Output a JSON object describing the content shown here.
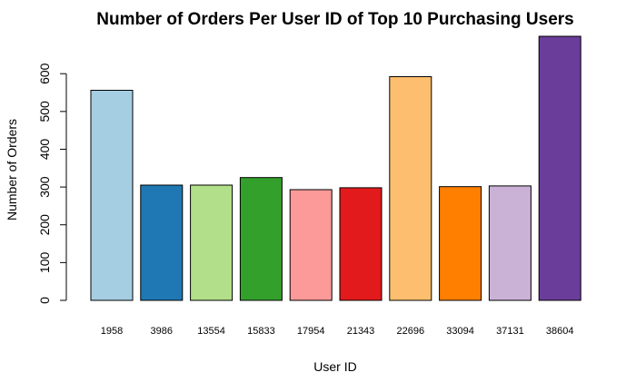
{
  "chart_data": {
    "type": "bar",
    "title": "Number of Orders Per User ID of Top 10 Purchasing Users",
    "xlabel": "User ID",
    "ylabel": "Number of Orders",
    "categories": [
      "1958",
      "3986",
      "13554",
      "15833",
      "17954",
      "21343",
      "22696",
      "33094",
      "37131",
      "38604"
    ],
    "values": [
      556,
      305,
      305,
      325,
      293,
      298,
      592,
      301,
      303,
      699
    ],
    "colors": [
      "#A6CEE3",
      "#1F78B4",
      "#B2DF8A",
      "#33A02C",
      "#FB9A99",
      "#E31A1C",
      "#FDBF6F",
      "#FF7F00",
      "#CAB2D6",
      "#6A3D9A"
    ],
    "ylim": [
      0,
      699
    ],
    "yticks": [
      "0",
      "100",
      "200",
      "300",
      "400",
      "500",
      "600"
    ],
    "grid": false,
    "legend": "none"
  }
}
